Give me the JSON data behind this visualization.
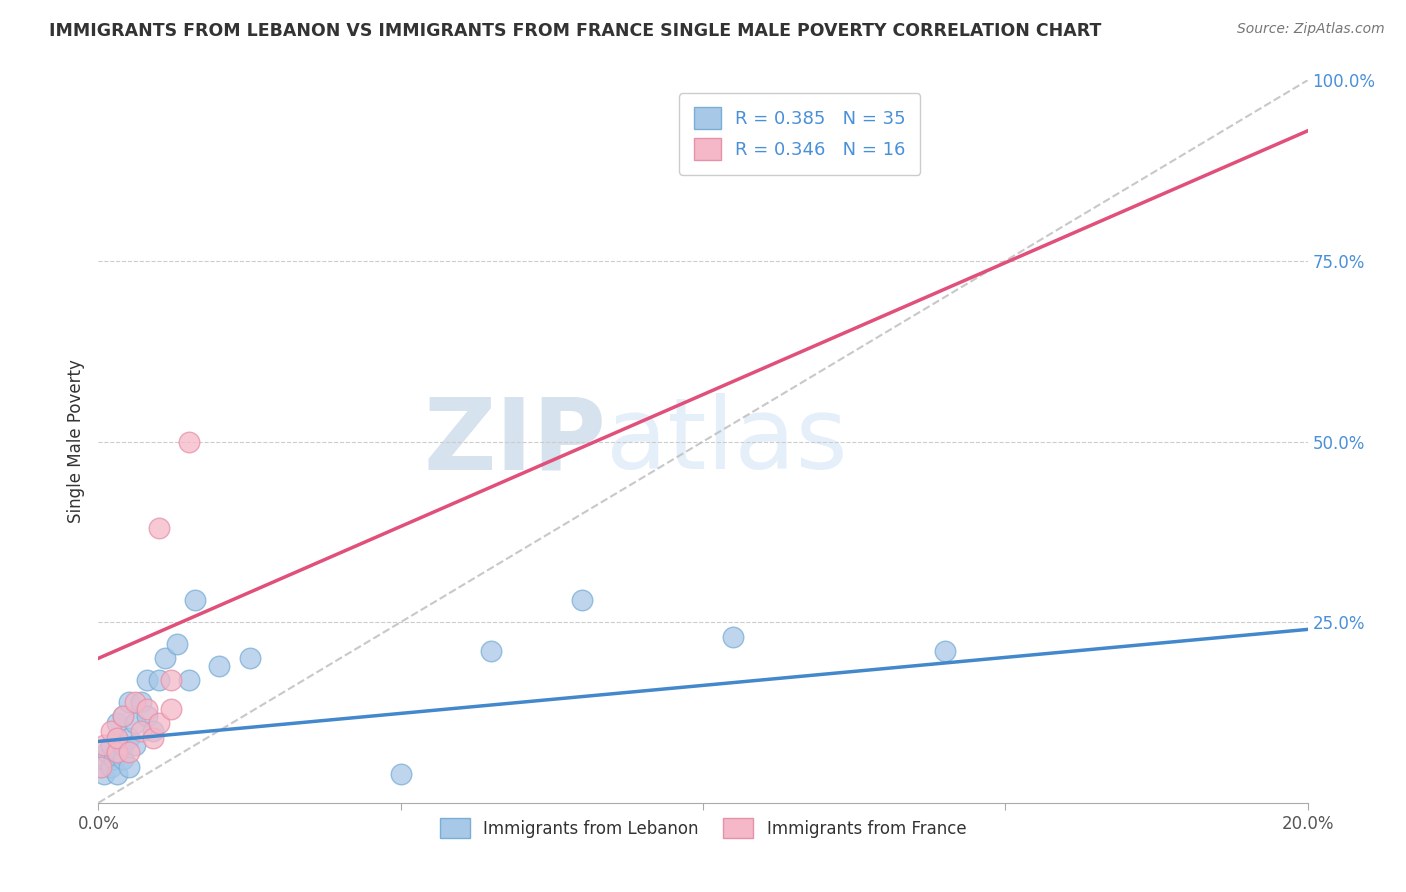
{
  "title": "IMMIGRANTS FROM LEBANON VS IMMIGRANTS FROM FRANCE SINGLE MALE POVERTY CORRELATION CHART",
  "source_text": "Source: ZipAtlas.com",
  "ylabel": "Single Male Poverty",
  "xlim": [
    0.0,
    0.2
  ],
  "ylim": [
    0.0,
    1.0
  ],
  "xticks": [
    0.0,
    0.05,
    0.1,
    0.15,
    0.2
  ],
  "xtick_labels": [
    "0.0%",
    "",
    "",
    "",
    "20.0%"
  ],
  "ytick_positions": [
    0.0,
    0.25,
    0.5,
    0.75,
    1.0
  ],
  "ytick_labels": [
    "",
    "25.0%",
    "50.0%",
    "75.0%",
    "100.0%"
  ],
  "lebanon_color": "#a8c8e8",
  "france_color": "#f4b8c8",
  "lebanon_edge": "#7aaed4",
  "france_edge": "#e890a8",
  "lebanon_line_color": "#4488cc",
  "france_line_color": "#e0507a",
  "ref_line_color": "#bbbbbb",
  "R_lebanon": 0.385,
  "N_lebanon": 35,
  "R_france": 0.346,
  "N_france": 16,
  "legend_label_lebanon": "Immigrants from Lebanon",
  "legend_label_france": "Immigrants from France",
  "watermark_zip": "ZIP",
  "watermark_atlas": "atlas",
  "background_color": "#ffffff",
  "grid_color": "#cccccc",
  "lebanon_x": [
    0.0005,
    0.001,
    0.001,
    0.0015,
    0.002,
    0.002,
    0.0025,
    0.003,
    0.003,
    0.003,
    0.003,
    0.004,
    0.004,
    0.004,
    0.005,
    0.005,
    0.005,
    0.006,
    0.006,
    0.007,
    0.008,
    0.008,
    0.009,
    0.01,
    0.011,
    0.013,
    0.015,
    0.016,
    0.02,
    0.025,
    0.05,
    0.065,
    0.08,
    0.105,
    0.14
  ],
  "lebanon_y": [
    0.05,
    0.04,
    0.06,
    0.07,
    0.05,
    0.08,
    0.06,
    0.04,
    0.07,
    0.09,
    0.11,
    0.06,
    0.08,
    0.12,
    0.05,
    0.09,
    0.14,
    0.08,
    0.11,
    0.14,
    0.12,
    0.17,
    0.1,
    0.17,
    0.2,
    0.22,
    0.17,
    0.28,
    0.19,
    0.2,
    0.04,
    0.21,
    0.28,
    0.23,
    0.21
  ],
  "france_x": [
    0.0005,
    0.001,
    0.002,
    0.003,
    0.003,
    0.004,
    0.005,
    0.006,
    0.007,
    0.008,
    0.009,
    0.01,
    0.01,
    0.012,
    0.012,
    0.015
  ],
  "france_y": [
    0.05,
    0.08,
    0.1,
    0.07,
    0.09,
    0.12,
    0.07,
    0.14,
    0.1,
    0.13,
    0.09,
    0.38,
    0.11,
    0.17,
    0.13,
    0.5
  ],
  "france_line_x0": 0.0,
  "france_line_y0": 0.2,
  "france_line_x1": 0.2,
  "france_line_y1": 0.93,
  "lebanon_line_x0": 0.0,
  "lebanon_line_y0": 0.085,
  "lebanon_line_x1": 0.2,
  "lebanon_line_y1": 0.24
}
